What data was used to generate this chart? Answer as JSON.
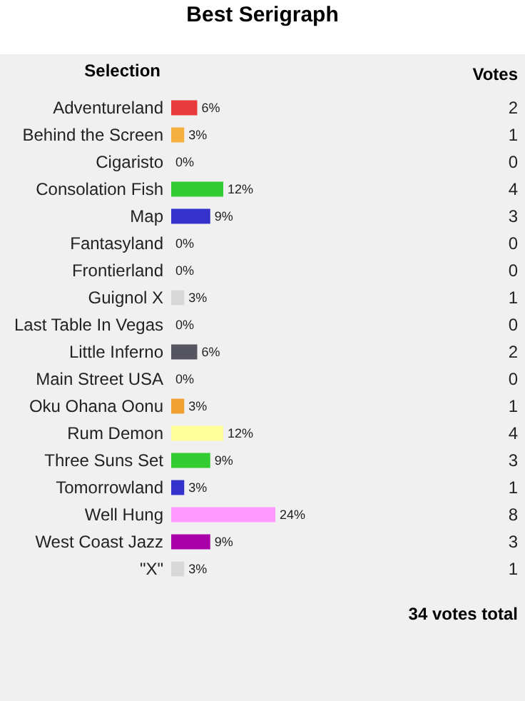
{
  "chart_data": {
    "type": "bar",
    "orientation": "horizontal",
    "title": "Best Serigraph",
    "ylabel": "Selection",
    "categories": [
      "Adventureland",
      "Behind the Screen",
      "Cigaristo",
      "Consolation Fish",
      "Map",
      "Fantasyland",
      "Frontierland",
      "Guignol X",
      "Last Table In Vegas",
      "Little Inferno",
      "Main Street USA",
      "Oku Ohana Oonu",
      "Rum Demon",
      "Three Suns Set",
      "Tomorrowland",
      "Well Hung",
      "West Coast Jazz",
      "\"X\""
    ],
    "values": [
      6,
      3,
      0,
      12,
      9,
      0,
      0,
      3,
      0,
      6,
      0,
      3,
      12,
      9,
      3,
      24,
      9,
      3
    ],
    "colors": [
      "#e83a3a",
      "#f5b040",
      "#e0e0e0",
      "#33cc33",
      "#3333cc",
      "#e0a0e0",
      "#a020a0",
      "#d8d8d8",
      "#cccccc",
      "#555560",
      "#e03030",
      "#f0a030",
      "#ffff99",
      "#33cc33",
      "#3333cc",
      "#ff99ff",
      "#aa00aa",
      "#d8d8d8"
    ],
    "value_labels": [
      "6%",
      "3%",
      "0%",
      "12%",
      "9%",
      "0%",
      "0%",
      "3%",
      "0%",
      "6%",
      "0%",
      "3%",
      "12%",
      "9%",
      "3%",
      "24%",
      "9%",
      "3%"
    ],
    "annotations": [
      "Votes",
      "2",
      "1",
      "0",
      "4",
      "3",
      "0",
      "0",
      "1",
      "0",
      "2",
      "0",
      "1",
      "4",
      "3",
      "1",
      "8",
      "3",
      "1",
      "34 votes total"
    ]
  }
}
